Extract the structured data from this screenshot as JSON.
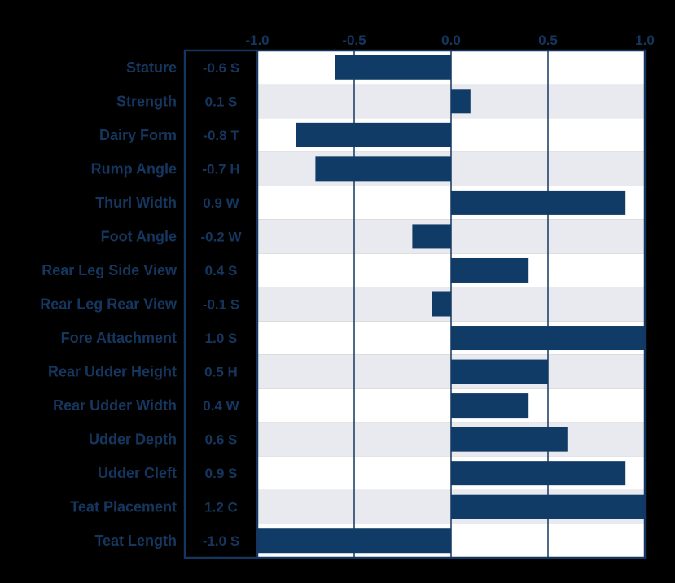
{
  "colors": {
    "background": "#000000",
    "plot_background": "#ffffff",
    "row_band": "#e8eaef",
    "bar": "#0f3b66",
    "text": "#15375f",
    "frame": "#15375f",
    "gridline": "#15375f"
  },
  "chart_data": {
    "type": "bar",
    "orientation": "horizontal",
    "title": "",
    "xlabel": "",
    "ylabel": "",
    "xlim": [
      -1.0,
      1.0
    ],
    "x_ticks": [
      -1.0,
      -0.5,
      0.0,
      0.5,
      1.0
    ],
    "x_tick_labels": [
      "-1.0",
      "-0.5",
      "0.0",
      "0.5",
      "1.0"
    ],
    "grid": true,
    "legend": "none",
    "categories": [
      "Stature",
      "Strength",
      "Dairy Form",
      "Rump Angle",
      "Thurl Width",
      "Foot Angle",
      "Rear Leg Side View",
      "Rear Leg Rear View",
      "Fore Attachment",
      "Rear Udder Height",
      "Rear Udder Width",
      "Udder Depth",
      "Udder Cleft",
      "Teat Placement",
      "Teat Length"
    ],
    "values": [
      -0.6,
      0.1,
      -0.8,
      -0.7,
      0.9,
      -0.2,
      0.4,
      -0.1,
      1.0,
      0.5,
      0.4,
      0.6,
      0.9,
      1.2,
      -1.0
    ],
    "value_labels": [
      "-0.6 S",
      "0.1 S",
      "-0.8 T",
      "-0.7 H",
      "0.9 W",
      "-0.2 W",
      "0.4 S",
      "-0.1 S",
      "1.0 S",
      "0.5 H",
      "0.4 W",
      "0.6 S",
      "0.9 S",
      "1.2 C",
      "-1.0 S"
    ]
  }
}
